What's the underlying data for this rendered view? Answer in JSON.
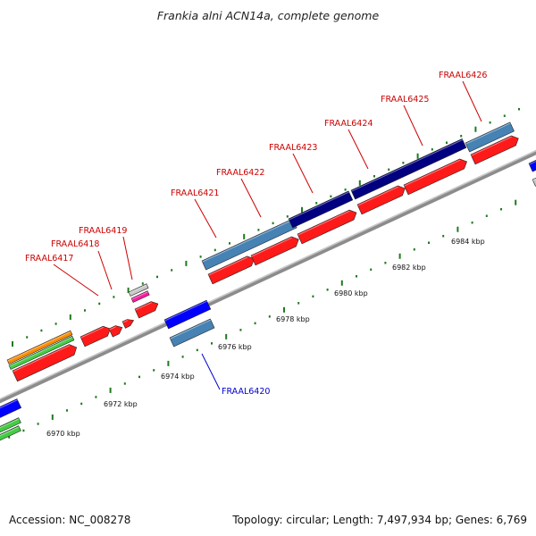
{
  "title": "Frankia alni ACN14a, complete genome",
  "footer": {
    "accession": "Accession: NC_008278",
    "info": "Topology: circular; Length: 7,497,934 bp; Genes: 6,769"
  },
  "colors": {
    "backbone": "#8c8c8c",
    "tick": "#1e7a1e",
    "label_forward": "#cc0000",
    "label_reverse": "#0000cc",
    "leader": "#cc0000"
  },
  "tick_labels": [
    "6970 kbp",
    "6972 kbp",
    "6974 kbp",
    "6976 kbp",
    "6978 kbp",
    "6980 kbp",
    "6982 kbp",
    "6984 kbp"
  ],
  "gene_labels": [
    {
      "name": "FRAAL6417",
      "strand": "forward"
    },
    {
      "name": "FRAAL6418",
      "strand": "forward"
    },
    {
      "name": "FRAAL6419",
      "strand": "forward"
    },
    {
      "name": "FRAAL6421",
      "strand": "forward"
    },
    {
      "name": "FRAAL6422",
      "strand": "forward"
    },
    {
      "name": "FRAAL6423",
      "strand": "forward"
    },
    {
      "name": "FRAAL6424",
      "strand": "forward"
    },
    {
      "name": "FRAAL6425",
      "strand": "forward"
    },
    {
      "name": "FRAAL6426",
      "strand": "forward"
    },
    {
      "name": "FRAAL6420",
      "strand": "reverse"
    }
  ]
}
